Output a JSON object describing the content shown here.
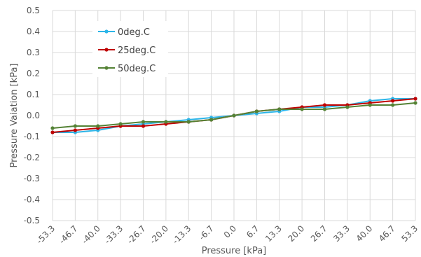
{
  "chart_data": {
    "type": "line",
    "xlabel": "Pressure [kPa]",
    "ylabel": "Pressure Vaiation [kPa]",
    "categories": [
      "-53.3",
      "-46.7",
      "-40.0",
      "-33.3",
      "-26.7",
      "-20.0",
      "-13.3",
      "-6.7",
      "0.0",
      "6.7",
      "13.3",
      "20.0",
      "26.7",
      "33.3",
      "40.0",
      "46.7",
      "53.3"
    ],
    "ylim": [
      -0.5,
      0.5
    ],
    "yticks": [
      "0.5",
      "0.4",
      "0.3",
      "0.2",
      "0.1",
      "0.0",
      "-0.1",
      "-0.2",
      "-0.3",
      "-0.4",
      "-0.5"
    ],
    "grid": true,
    "legend_position": "top-left",
    "series": [
      {
        "name": "0deg.C",
        "color": "#2CB5E8",
        "values": [
          -0.08,
          -0.08,
          -0.07,
          -0.05,
          -0.04,
          -0.03,
          -0.02,
          -0.01,
          0.0,
          0.01,
          0.02,
          0.04,
          0.04,
          0.05,
          0.07,
          0.08,
          0.08
        ]
      },
      {
        "name": "25deg.C",
        "color": "#C00000",
        "values": [
          -0.08,
          -0.07,
          -0.06,
          -0.05,
          -0.05,
          -0.04,
          -0.03,
          -0.02,
          0.0,
          0.02,
          0.03,
          0.04,
          0.05,
          0.05,
          0.06,
          0.07,
          0.08
        ]
      },
      {
        "name": "50deg.C",
        "color": "#548235",
        "values": [
          -0.06,
          -0.05,
          -0.05,
          -0.04,
          -0.03,
          -0.03,
          -0.03,
          -0.02,
          0.0,
          0.02,
          0.03,
          0.03,
          0.03,
          0.04,
          0.05,
          0.05,
          0.06
        ]
      }
    ]
  }
}
